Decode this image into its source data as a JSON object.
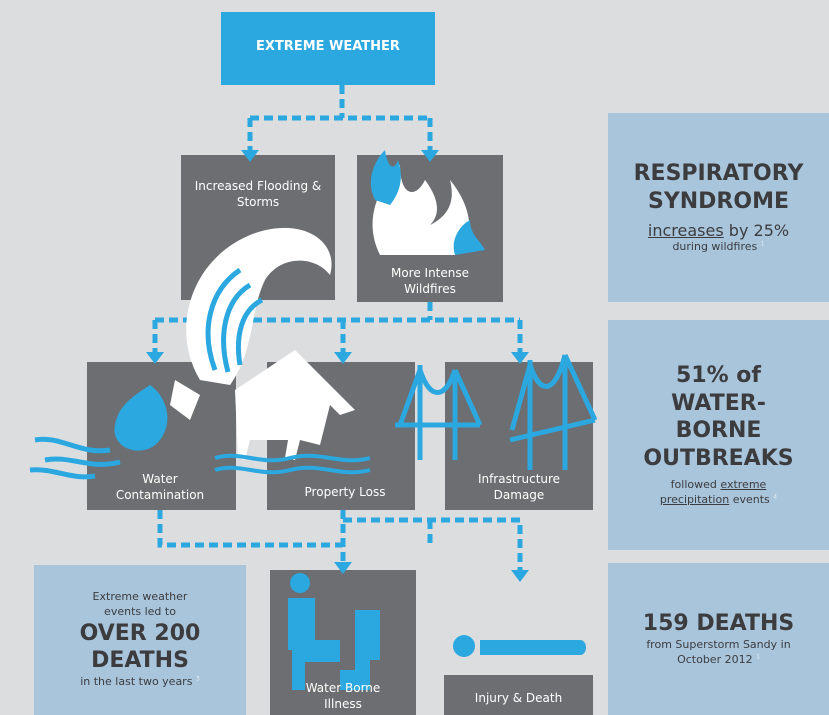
{
  "header": {
    "title": "EXTREME WEATHER"
  },
  "nodes": [
    {
      "label": "Increased Flooding & Storms"
    },
    {
      "label": "More Intense Wildfires"
    },
    {
      "label": "Water Contamination"
    },
    {
      "label": "Property Loss"
    },
    {
      "label": "Infrastructure Damage"
    },
    {
      "label": "Water Borne Illness"
    },
    {
      "label": "Injury & Death"
    }
  ],
  "panels": {
    "respiratory": {
      "headline": "RESPIRATORY SYNDROME",
      "emphasis": "increases",
      "stat": "by 25%",
      "note": "during wildfires",
      "footnote": "1"
    },
    "waterborne": {
      "lead": "51% of",
      "headline": "WATER-BORNE OUTBREAKS",
      "note_before": "followed",
      "note_link": "extreme precipitation",
      "note_after": "events",
      "footnote": "4"
    },
    "sandy": {
      "headline": "159 DEATHS",
      "note": "from Superstorm Sandy in October 2012",
      "footnote": "1"
    },
    "deaths": {
      "lead": "Extreme weather events led to",
      "headline": "OVER 200 DEATHS",
      "note": "in the last two years",
      "footnote": "3"
    }
  }
}
